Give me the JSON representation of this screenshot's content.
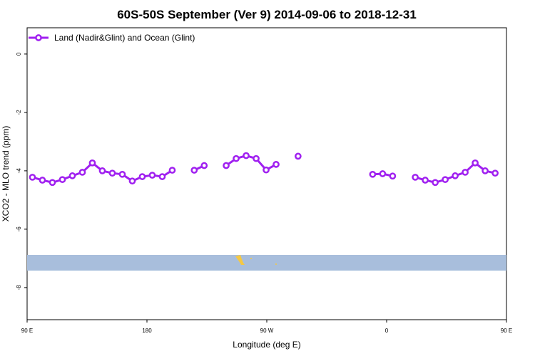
{
  "chart_data": {
    "type": "line",
    "title": "60S-50S September (Ver 9)   2014-09-06 to 2018-12-31",
    "xlabel": "Longitude (deg E)",
    "ylabel": "XCO2 - MLO trend (ppm)",
    "xlim": [
      90,
      450
    ],
    "ylim": [
      -9.1,
      0.9
    ],
    "grid": false,
    "legend_position": "top-left",
    "x_ticks": [
      {
        "value": 90,
        "label": "90 E"
      },
      {
        "value": 180,
        "label": "180"
      },
      {
        "value": 270,
        "label": "90 W"
      },
      {
        "value": 360,
        "label": "0"
      },
      {
        "value": 450,
        "label": "90 E"
      },
      {
        "value": 540,
        "label": "180"
      }
    ],
    "y_ticks": [
      {
        "value": 0,
        "label": "0"
      },
      {
        "value": -2,
        "label": "-2"
      },
      {
        "value": -4,
        "label": "-4"
      },
      {
        "value": -6,
        "label": "-6"
      },
      {
        "value": -8,
        "label": "-8"
      }
    ],
    "series": [
      {
        "name": "Land (Nadir&Glint) and Ocean (Glint)",
        "color": "#a020f0",
        "segments": [
          [
            [
              94,
              -4.22
            ],
            [
              101.5,
              -4.32
            ],
            [
              109,
              -4.4
            ],
            [
              116.5,
              -4.3
            ],
            [
              124,
              -4.17
            ],
            [
              131.5,
              -4.05
            ],
            [
              139,
              -3.73
            ],
            [
              146.5,
              -4.0
            ],
            [
              154,
              -4.08
            ],
            [
              161.5,
              -4.12
            ],
            [
              169,
              -4.35
            ],
            [
              176.5,
              -4.2
            ],
            [
              184,
              -4.15
            ],
            [
              191.5,
              -4.2
            ],
            [
              199,
              -3.98
            ]
          ],
          [
            [
              215.5,
              -3.98
            ],
            [
              223,
              -3.82
            ]
          ],
          [
            [
              239.5,
              -3.82
            ],
            [
              247,
              -3.58
            ],
            [
              254.5,
              -3.48
            ],
            [
              262,
              -3.58
            ],
            [
              269.5,
              -3.97
            ],
            [
              277,
              -3.78
            ]
          ],
          [
            [
              293.5,
              -3.5
            ]
          ],
          [
            [
              349.5,
              -4.12
            ],
            [
              357,
              -4.1
            ],
            [
              364.5,
              -4.18
            ]
          ],
          [
            [
              381.5,
              -4.22
            ],
            [
              389,
              -4.32
            ],
            [
              396.5,
              -4.4
            ],
            [
              404,
              -4.3
            ],
            [
              411.5,
              -4.17
            ],
            [
              419,
              -4.05
            ],
            [
              426.5,
              -3.73
            ],
            [
              434,
              -4.0
            ],
            [
              441.5,
              -4.08
            ]
          ]
        ]
      }
    ],
    "map_band": {
      "y_top": -6.88,
      "y_bottom": -7.42,
      "color": "#a8bedc",
      "land_color": "#f5c842"
    }
  }
}
